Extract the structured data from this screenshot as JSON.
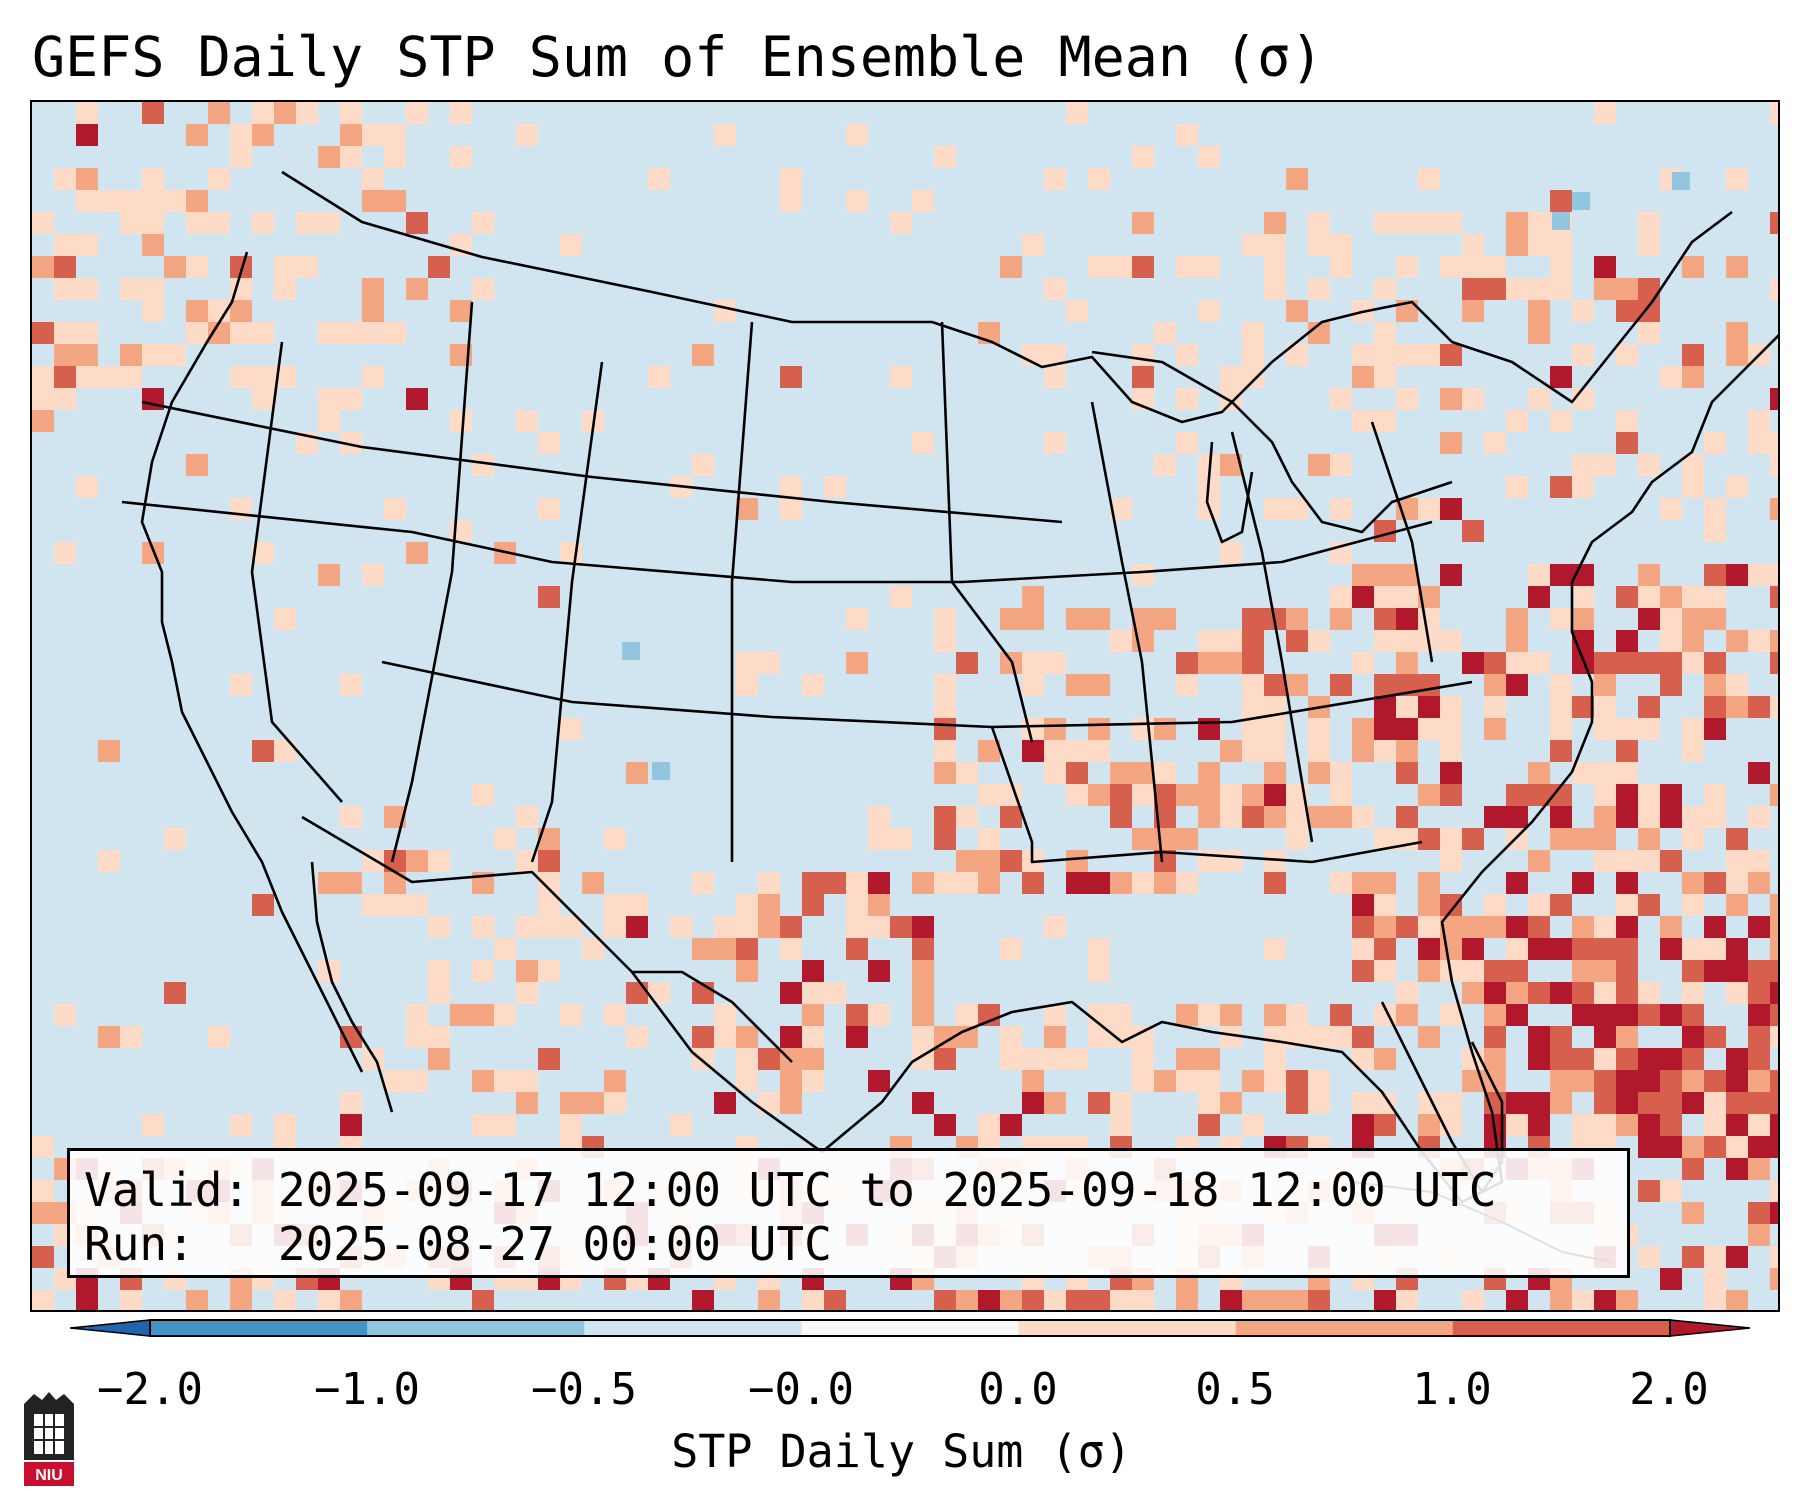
{
  "title": "GEFS Daily STP Sum of Ensemble Mean (σ)",
  "info": {
    "valid_label": "Valid:",
    "valid_value": "2025-09-17 12:00 UTC to 2025-09-18 12:00 UTC",
    "run_label": "Run:",
    "run_value": "2025-08-27 00:00 UTC"
  },
  "colorbar": {
    "label": "STP Daily Sum (σ)",
    "ticks": [
      "−2.0",
      "−1.0",
      "−0.5",
      "−0.0",
      "0.0",
      "0.5",
      "1.0",
      "2.0"
    ],
    "bin_colors": [
      "#4393c3",
      "#92c5de",
      "#d1e5f0",
      "#f7f7f7",
      "#fddbc7",
      "#f4a582",
      "#d6604d"
    ],
    "under_color": "#2166ac",
    "over_color": "#b2182b"
  },
  "map": {
    "region": "CONUS and surrounding",
    "field": "STP daily sum anomaly",
    "background_color": "#d1e5f0",
    "categories": [
      "light",
      "medium",
      "strong",
      "extreme",
      "negative-light",
      "negative-medium"
    ],
    "category_colors": {
      "light": "#fddbc7",
      "medium": "#f4a582",
      "strong": "#d6604d",
      "extreme": "#b2182b",
      "negative-light": "#92c5de",
      "negative-medium": "#4393c3"
    }
  },
  "logo": {
    "text": "NIU",
    "icon": "niu-logo-icon"
  }
}
